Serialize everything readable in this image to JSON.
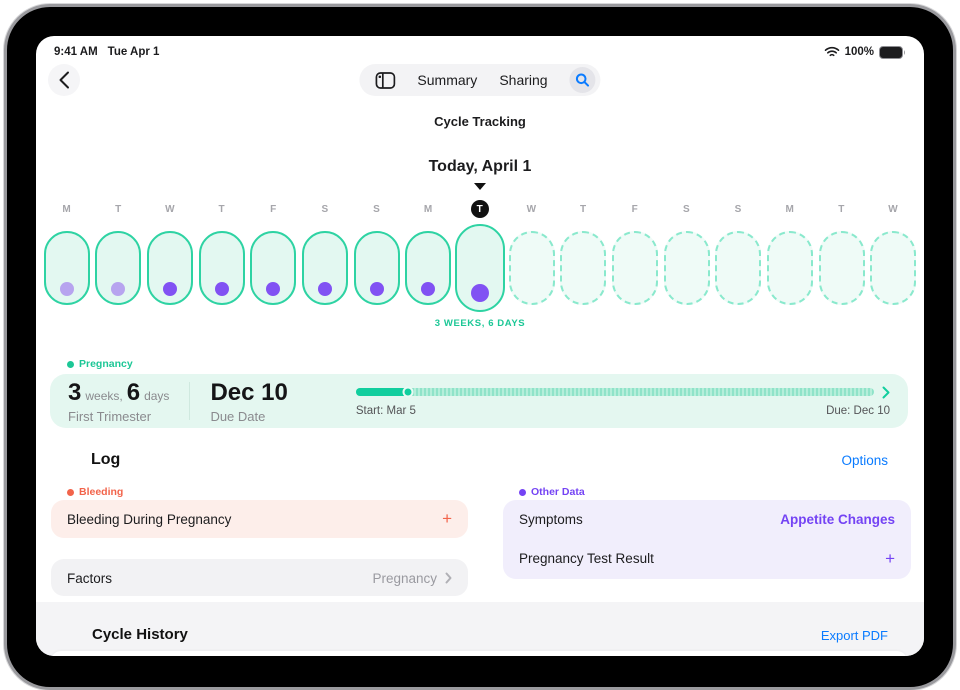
{
  "status": {
    "time": "9:41 AM",
    "date": "Tue Apr 1",
    "battery": "100%"
  },
  "nav": {
    "summary_label": "Summary",
    "sharing_label": "Sharing"
  },
  "header": {
    "title": "Cycle Tracking",
    "date_label": "Today, April 1"
  },
  "cycle_strip": {
    "weeks_label": "3 WEEKS, 6 DAYS",
    "days": [
      {
        "letter": "M",
        "state": "logged",
        "dot": "light"
      },
      {
        "letter": "T",
        "state": "logged",
        "dot": "light"
      },
      {
        "letter": "W",
        "state": "logged",
        "dot": "dark"
      },
      {
        "letter": "T",
        "state": "logged",
        "dot": "dark"
      },
      {
        "letter": "F",
        "state": "logged",
        "dot": "dark"
      },
      {
        "letter": "S",
        "state": "logged",
        "dot": "dark"
      },
      {
        "letter": "S",
        "state": "logged",
        "dot": "dark"
      },
      {
        "letter": "M",
        "state": "logged",
        "dot": "dark"
      },
      {
        "letter": "T",
        "state": "today",
        "dot": "dark"
      },
      {
        "letter": "W",
        "state": "future"
      },
      {
        "letter": "T",
        "state": "future"
      },
      {
        "letter": "F",
        "state": "future"
      },
      {
        "letter": "S",
        "state": "future"
      },
      {
        "letter": "S",
        "state": "future"
      },
      {
        "letter": "M",
        "state": "future"
      },
      {
        "letter": "T",
        "state": "future"
      },
      {
        "letter": "W",
        "state": "future"
      }
    ]
  },
  "pregnancy": {
    "section_label": "Pregnancy",
    "weeks_value": "3",
    "weeks_unit": "weeks,",
    "days_value": "6",
    "days_unit": "days",
    "stage": "First Trimester",
    "due_date": "Dec 10",
    "due_label": "Due Date",
    "timeline": {
      "start_label": "Start: Mar 5",
      "due_label": "Due: Dec 10",
      "progress_pct": 10
    }
  },
  "log": {
    "title": "Log",
    "options_label": "Options",
    "bleeding": {
      "section_label": "Bleeding",
      "item_label": "Bleeding During Pregnancy",
      "add_label": "+"
    },
    "factors": {
      "label": "Factors",
      "value": "Pregnancy"
    },
    "other_data": {
      "section_label": "Other Data",
      "rows": [
        {
          "label": "Symptoms",
          "value": "Appetite Changes"
        },
        {
          "label": "Pregnancy Test Result",
          "value": "+"
        }
      ]
    }
  },
  "history": {
    "title": "Cycle History",
    "export_label": "Export PDF"
  },
  "colors": {
    "teal-stroke": "#2ed3a3",
    "teal-fill": "#e3f8f1",
    "teal-dash": "#8ae9cd",
    "teal-fill-light": "#effbf7",
    "teal-text": "#1cc796",
    "mint-card": "#e4f7f0",
    "progress": "#11ce9e",
    "purple-light": "#b7a4ef",
    "purple-dark": "#8152f3",
    "purple-text": "#7443f4",
    "lavender-card": "#f1eefc",
    "red": "#f2644b",
    "pink-card": "#fdeeea",
    "gray-card": "#f2f2f4",
    "blue": "#0a7bff"
  }
}
